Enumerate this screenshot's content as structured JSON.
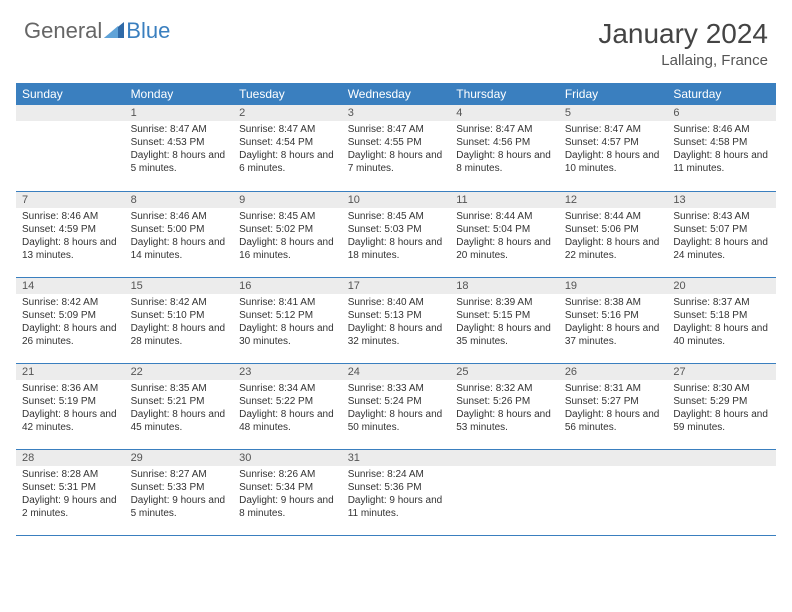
{
  "logo": {
    "part1": "General",
    "part2": "Blue"
  },
  "title": "January 2024",
  "location": "Lallaing, France",
  "columns": [
    "Sunday",
    "Monday",
    "Tuesday",
    "Wednesday",
    "Thursday",
    "Friday",
    "Saturday"
  ],
  "colors": {
    "header_bg": "#3a7fbf",
    "header_fg": "#ffffff",
    "daynum_bg": "#ececec",
    "rule": "#3a7fbf",
    "text": "#333333",
    "logo_gray": "#666666",
    "logo_blue": "#3a7fbf"
  },
  "weeks": [
    [
      {
        "n": "",
        "sr": "",
        "ss": "",
        "dl": ""
      },
      {
        "n": "1",
        "sr": "8:47 AM",
        "ss": "4:53 PM",
        "dl": "8 hours and 5 minutes."
      },
      {
        "n": "2",
        "sr": "8:47 AM",
        "ss": "4:54 PM",
        "dl": "8 hours and 6 minutes."
      },
      {
        "n": "3",
        "sr": "8:47 AM",
        "ss": "4:55 PM",
        "dl": "8 hours and 7 minutes."
      },
      {
        "n": "4",
        "sr": "8:47 AM",
        "ss": "4:56 PM",
        "dl": "8 hours and 8 minutes."
      },
      {
        "n": "5",
        "sr": "8:47 AM",
        "ss": "4:57 PM",
        "dl": "8 hours and 10 minutes."
      },
      {
        "n": "6",
        "sr": "8:46 AM",
        "ss": "4:58 PM",
        "dl": "8 hours and 11 minutes."
      }
    ],
    [
      {
        "n": "7",
        "sr": "8:46 AM",
        "ss": "4:59 PM",
        "dl": "8 hours and 13 minutes."
      },
      {
        "n": "8",
        "sr": "8:46 AM",
        "ss": "5:00 PM",
        "dl": "8 hours and 14 minutes."
      },
      {
        "n": "9",
        "sr": "8:45 AM",
        "ss": "5:02 PM",
        "dl": "8 hours and 16 minutes."
      },
      {
        "n": "10",
        "sr": "8:45 AM",
        "ss": "5:03 PM",
        "dl": "8 hours and 18 minutes."
      },
      {
        "n": "11",
        "sr": "8:44 AM",
        "ss": "5:04 PM",
        "dl": "8 hours and 20 minutes."
      },
      {
        "n": "12",
        "sr": "8:44 AM",
        "ss": "5:06 PM",
        "dl": "8 hours and 22 minutes."
      },
      {
        "n": "13",
        "sr": "8:43 AM",
        "ss": "5:07 PM",
        "dl": "8 hours and 24 minutes."
      }
    ],
    [
      {
        "n": "14",
        "sr": "8:42 AM",
        "ss": "5:09 PM",
        "dl": "8 hours and 26 minutes."
      },
      {
        "n": "15",
        "sr": "8:42 AM",
        "ss": "5:10 PM",
        "dl": "8 hours and 28 minutes."
      },
      {
        "n": "16",
        "sr": "8:41 AM",
        "ss": "5:12 PM",
        "dl": "8 hours and 30 minutes."
      },
      {
        "n": "17",
        "sr": "8:40 AM",
        "ss": "5:13 PM",
        "dl": "8 hours and 32 minutes."
      },
      {
        "n": "18",
        "sr": "8:39 AM",
        "ss": "5:15 PM",
        "dl": "8 hours and 35 minutes."
      },
      {
        "n": "19",
        "sr": "8:38 AM",
        "ss": "5:16 PM",
        "dl": "8 hours and 37 minutes."
      },
      {
        "n": "20",
        "sr": "8:37 AM",
        "ss": "5:18 PM",
        "dl": "8 hours and 40 minutes."
      }
    ],
    [
      {
        "n": "21",
        "sr": "8:36 AM",
        "ss": "5:19 PM",
        "dl": "8 hours and 42 minutes."
      },
      {
        "n": "22",
        "sr": "8:35 AM",
        "ss": "5:21 PM",
        "dl": "8 hours and 45 minutes."
      },
      {
        "n": "23",
        "sr": "8:34 AM",
        "ss": "5:22 PM",
        "dl": "8 hours and 48 minutes."
      },
      {
        "n": "24",
        "sr": "8:33 AM",
        "ss": "5:24 PM",
        "dl": "8 hours and 50 minutes."
      },
      {
        "n": "25",
        "sr": "8:32 AM",
        "ss": "5:26 PM",
        "dl": "8 hours and 53 minutes."
      },
      {
        "n": "26",
        "sr": "8:31 AM",
        "ss": "5:27 PM",
        "dl": "8 hours and 56 minutes."
      },
      {
        "n": "27",
        "sr": "8:30 AM",
        "ss": "5:29 PM",
        "dl": "8 hours and 59 minutes."
      }
    ],
    [
      {
        "n": "28",
        "sr": "8:28 AM",
        "ss": "5:31 PM",
        "dl": "9 hours and 2 minutes."
      },
      {
        "n": "29",
        "sr": "8:27 AM",
        "ss": "5:33 PM",
        "dl": "9 hours and 5 minutes."
      },
      {
        "n": "30",
        "sr": "8:26 AM",
        "ss": "5:34 PM",
        "dl": "9 hours and 8 minutes."
      },
      {
        "n": "31",
        "sr": "8:24 AM",
        "ss": "5:36 PM",
        "dl": "9 hours and 11 minutes."
      },
      {
        "n": "",
        "sr": "",
        "ss": "",
        "dl": ""
      },
      {
        "n": "",
        "sr": "",
        "ss": "",
        "dl": ""
      },
      {
        "n": "",
        "sr": "",
        "ss": "",
        "dl": ""
      }
    ]
  ]
}
